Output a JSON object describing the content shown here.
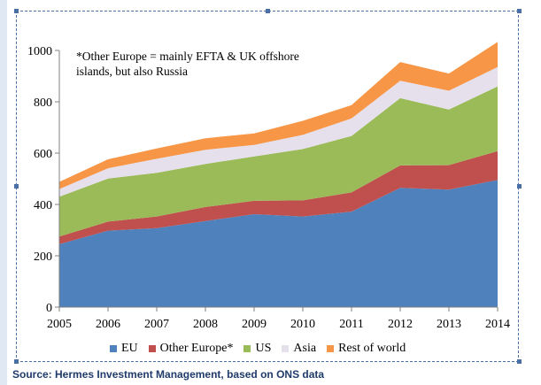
{
  "chart_data": {
    "type": "area",
    "stacked": true,
    "x": [
      2005,
      2006,
      2007,
      2008,
      2009,
      2010,
      2011,
      2012,
      2013,
      2014
    ],
    "series": [
      {
        "name": "EU",
        "color": "#4f81bd",
        "values": [
          245,
          298,
          308,
          335,
          362,
          353,
          372,
          465,
          458,
          495
        ]
      },
      {
        "name": "Other Europe*",
        "color": "#c0504d",
        "values": [
          30,
          35,
          45,
          55,
          52,
          63,
          75,
          87,
          95,
          113
        ]
      },
      {
        "name": "US",
        "color": "#9bbb59",
        "values": [
          155,
          168,
          170,
          168,
          173,
          200,
          220,
          262,
          217,
          252
        ]
      },
      {
        "name": "Asia",
        "color": "#e6e0ec",
        "values": [
          30,
          40,
          55,
          55,
          45,
          55,
          68,
          68,
          73,
          75
        ]
      },
      {
        "name": "Rest of world",
        "color": "#f79646",
        "values": [
          28,
          35,
          40,
          45,
          45,
          55,
          52,
          73,
          67,
          98
        ]
      }
    ],
    "ylim": [
      0,
      1000
    ],
    "yticks": [
      "0",
      "200",
      "400",
      "600",
      "800",
      "1000"
    ],
    "xticks": [
      "2005",
      "2006",
      "2007",
      "2008",
      "2009",
      "2010",
      "2011",
      "2012",
      "2013",
      "2014"
    ],
    "grid": false,
    "legend_position": "bottom",
    "annotation": "*Other Europe = mainly EFTA & UK offshore islands, but also Russia"
  },
  "source_text": "Source: Hermes Investment Management, based on ONS data"
}
